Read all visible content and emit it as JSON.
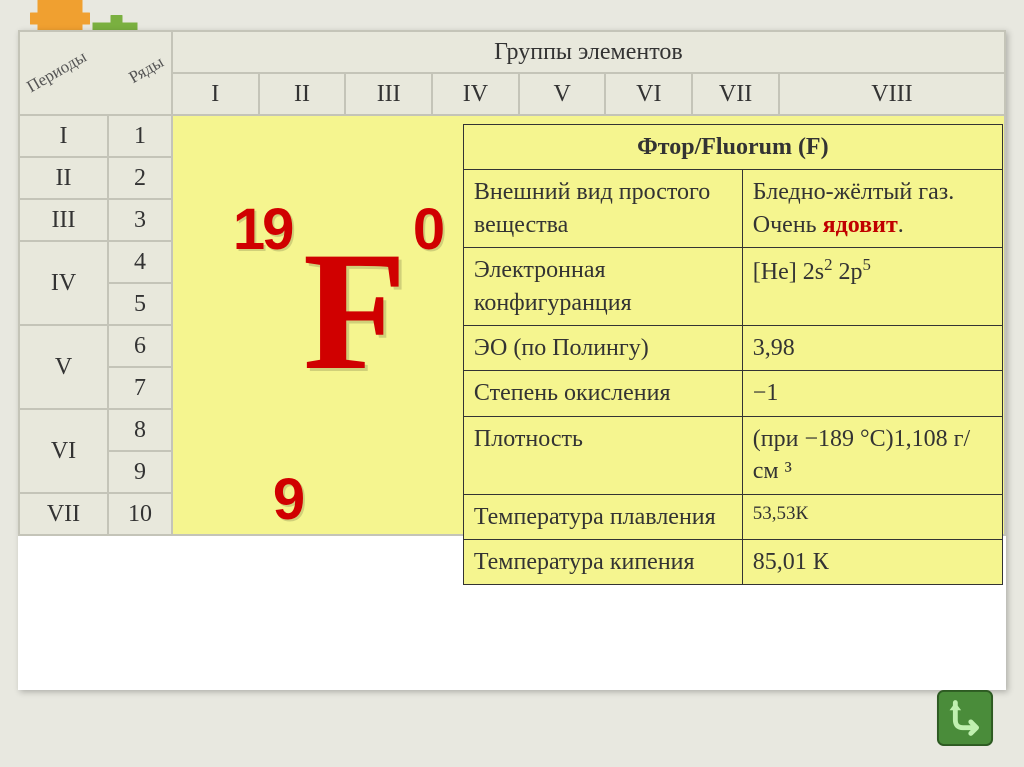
{
  "header": {
    "periods_label": "Периоды",
    "rows_label": "Ряды",
    "groups_title": "Группы элементов",
    "group_numerals": [
      "I",
      "II",
      "III",
      "IV",
      "V",
      "VI",
      "VII",
      "VIII"
    ]
  },
  "periods": [
    {
      "period": "I",
      "rows": [
        "1"
      ]
    },
    {
      "period": "II",
      "rows": [
        "2"
      ]
    },
    {
      "period": "III",
      "rows": [
        "3"
      ]
    },
    {
      "period": "IV",
      "rows": [
        "4",
        "5"
      ]
    },
    {
      "period": "V",
      "rows": [
        "6",
        "7"
      ]
    },
    {
      "period": "VI",
      "rows": [
        "8",
        "9"
      ]
    },
    {
      "period": "VII",
      "rows": [
        "10"
      ]
    }
  ],
  "element": {
    "mass_number": "19",
    "charge_zero": "0",
    "symbol": "F",
    "atomic_number": "9",
    "title": "Фтор/Fluorum (F)"
  },
  "properties": [
    {
      "label": "Внешний вид простого вещества",
      "value_pre": "Бледно-жёлтый газ. Очень ",
      "value_red": "ядовит",
      "value_post": "."
    },
    {
      "label": "Электронная конфигуранция",
      "value_html": "[He] 2s<span class='sup'>2</span> 2p<span class='sup'>5</span>"
    },
    {
      "label": " ЭО (по Полингу)",
      "value": "3,98"
    },
    {
      "label": "Степень окисления",
      "value": "−1"
    },
    {
      "label": "Плотность",
      "value": "(при −189 °C)1,108 г/см ³"
    },
    {
      "label": "Температура плавления",
      "value": "53,53К"
    },
    {
      "label": "Температура кипения",
      "value": "85,01 К"
    }
  ],
  "style": {
    "content_bg": "#f5f58f",
    "side_bg": "#e8e8dc",
    "border_color": "#c4c4b8",
    "element_color": "#d00000",
    "title_color": "#c00000",
    "nav_fill": "#4a8c3a",
    "nav_arrow": "#c0f0b0",
    "puzzle_orange": "#f0a030",
    "puzzle_green": "#7ab040"
  }
}
